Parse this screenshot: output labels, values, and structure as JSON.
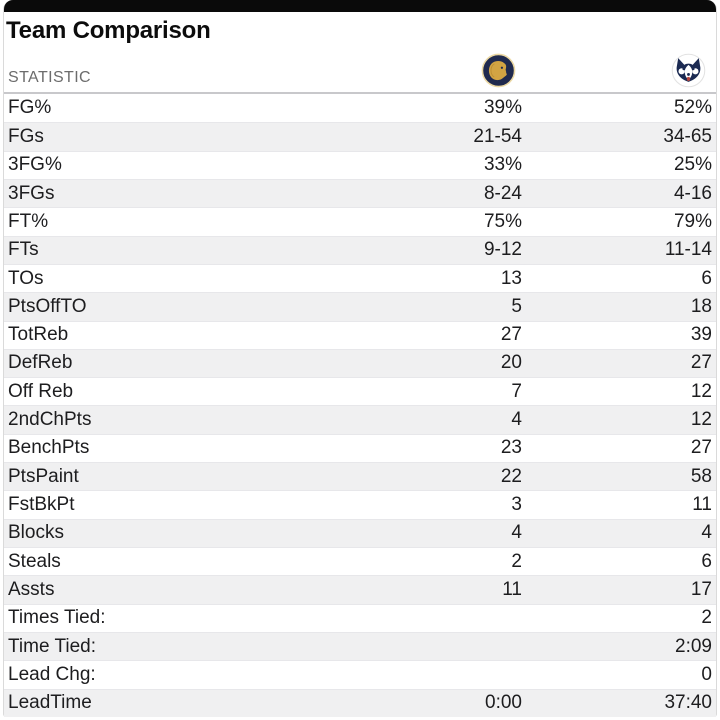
{
  "card": {
    "title": "Team Comparison"
  },
  "table": {
    "statistic_header": "STATISTIC",
    "team1_icon": "lion-head-team-logo-icon",
    "team2_icon": "husky-head-team-logo-icon",
    "rows": [
      {
        "label": "FG%",
        "team1": "39%",
        "team2": "52%"
      },
      {
        "label": "FGs",
        "team1": "21-54",
        "team2": "34-65"
      },
      {
        "label": "3FG%",
        "team1": "33%",
        "team2": "25%"
      },
      {
        "label": "3FGs",
        "team1": "8-24",
        "team2": "4-16"
      },
      {
        "label": "FT%",
        "team1": "75%",
        "team2": "79%"
      },
      {
        "label": "FTs",
        "team1": "9-12",
        "team2": "11-14"
      },
      {
        "label": "TOs",
        "team1": "13",
        "team2": "6"
      },
      {
        "label": "PtsOffTO",
        "team1": "5",
        "team2": "18"
      },
      {
        "label": "TotReb",
        "team1": "27",
        "team2": "39"
      },
      {
        "label": "DefReb",
        "team1": "20",
        "team2": "27"
      },
      {
        "label": "Off Reb",
        "team1": "7",
        "team2": "12"
      },
      {
        "label": "2ndChPts",
        "team1": "4",
        "team2": "12"
      },
      {
        "label": "BenchPts",
        "team1": "23",
        "team2": "27"
      },
      {
        "label": "PtsPaint",
        "team1": "22",
        "team2": "58"
      },
      {
        "label": "FstBkPt",
        "team1": "3",
        "team2": "11"
      },
      {
        "label": "Blocks",
        "team1": "4",
        "team2": "4"
      },
      {
        "label": "Steals",
        "team1": "2",
        "team2": "6"
      },
      {
        "label": "Assts",
        "team1": "11",
        "team2": "17"
      },
      {
        "label": "Times Tied:",
        "team1": "",
        "team2": "2"
      },
      {
        "label": "Time Tied:",
        "team1": "",
        "team2": "2:09"
      },
      {
        "label": "Lead Chg:",
        "team1": "",
        "team2": "0"
      },
      {
        "label": "LeadTime",
        "team1": "0:00",
        "team2": "37:40"
      }
    ]
  },
  "colors": {
    "top_bar": "#0a0a0a",
    "title_text": "#0c0c0c",
    "header_text": "#6c6c6c",
    "row_text": "#1d1d1f",
    "row_alt_background": "#f0f0f1",
    "lion_logo_navy": "#202a4e",
    "lion_logo_gold": "#d2a443",
    "lion_logo_cream_ring": "#ecd9a4",
    "husky_logo_navy": "#1b2a52"
  }
}
